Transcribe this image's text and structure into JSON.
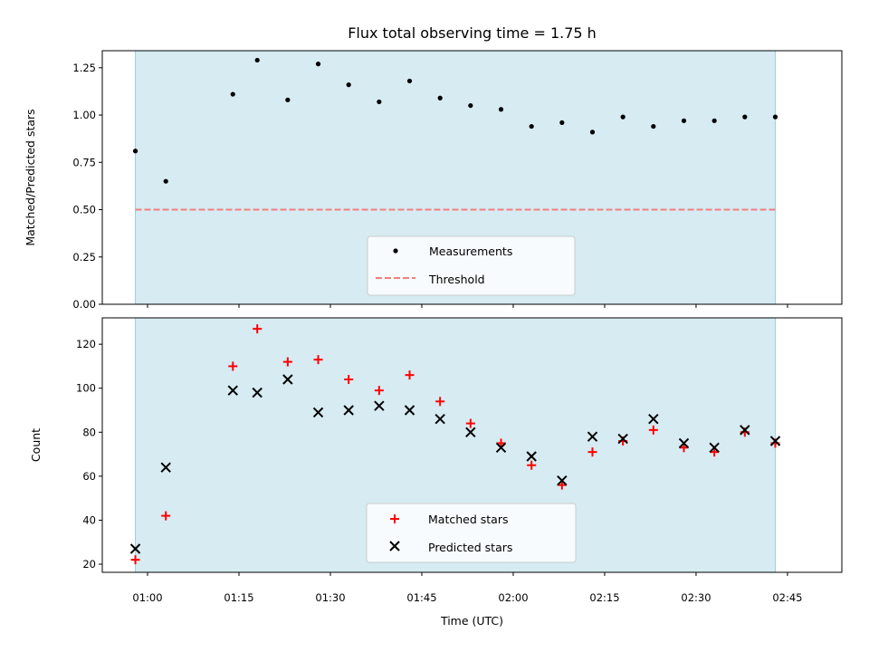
{
  "chart_data": [
    {
      "type": "scatter",
      "title": "Flux total observing time = 1.75 h",
      "ylabel": "Matched/Predicted stars",
      "xlabel": "",
      "ylim": [
        0,
        1.34
      ],
      "yticks": [
        "0.00",
        "0.25",
        "0.50",
        "0.75",
        "1.00",
        "1.25"
      ],
      "x": [
        "00:58",
        "01:03",
        "01:14",
        "01:18",
        "01:23",
        "01:28",
        "01:33",
        "01:38",
        "01:43",
        "01:48",
        "01:53",
        "01:58",
        "02:03",
        "02:08",
        "02:13",
        "02:18",
        "02:23",
        "02:28",
        "02:33",
        "02:38",
        "02:43"
      ],
      "series": [
        {
          "name": "Measurements",
          "marker": "dot",
          "color": "#000000",
          "values": [
            0.81,
            0.65,
            1.11,
            1.29,
            1.08,
            1.27,
            1.16,
            1.07,
            1.18,
            1.09,
            1.05,
            1.03,
            0.94,
            0.96,
            0.91,
            0.99,
            0.94,
            0.97,
            0.97,
            0.99,
            0.99
          ]
        },
        {
          "name": "Threshold",
          "marker": "dashed-line",
          "color": "#f08080",
          "value": 0.5
        }
      ],
      "shaded_span": [
        "00:58",
        "02:43"
      ],
      "shade_color": "#add8e6",
      "legend_position": "lower center"
    },
    {
      "type": "scatter",
      "title": "",
      "xlabel": "Time (UTC)",
      "ylabel": "Count",
      "ylim": [
        16.3,
        132
      ],
      "yticks": [
        "20",
        "40",
        "60",
        "80",
        "100",
        "120"
      ],
      "xticks": [
        "01:00",
        "01:15",
        "01:30",
        "01:45",
        "02:00",
        "02:15",
        "02:30",
        "02:45"
      ],
      "x": [
        "00:58",
        "01:03",
        "01:14",
        "01:18",
        "01:23",
        "01:28",
        "01:33",
        "01:38",
        "01:43",
        "01:48",
        "01:53",
        "01:58",
        "02:03",
        "02:08",
        "02:13",
        "02:18",
        "02:23",
        "02:28",
        "02:33",
        "02:38",
        "02:43"
      ],
      "series": [
        {
          "name": "Matched stars",
          "marker": "plus",
          "color": "#ff0000",
          "values": [
            22,
            42,
            110,
            127,
            112,
            113,
            104,
            99,
            106,
            94,
            84,
            75,
            65,
            56,
            71,
            76,
            81,
            73,
            71,
            80,
            75
          ]
        },
        {
          "name": "Predicted stars",
          "marker": "x",
          "color": "#000000",
          "values": [
            27,
            64,
            99,
            98,
            104,
            89,
            90,
            92,
            90,
            86,
            80,
            73,
            69,
            58,
            78,
            77,
            86,
            75,
            73,
            81,
            76
          ]
        }
      ],
      "shaded_span": [
        "00:58",
        "02:43"
      ],
      "shade_color": "#add8e6",
      "legend_position": "lower center"
    }
  ]
}
